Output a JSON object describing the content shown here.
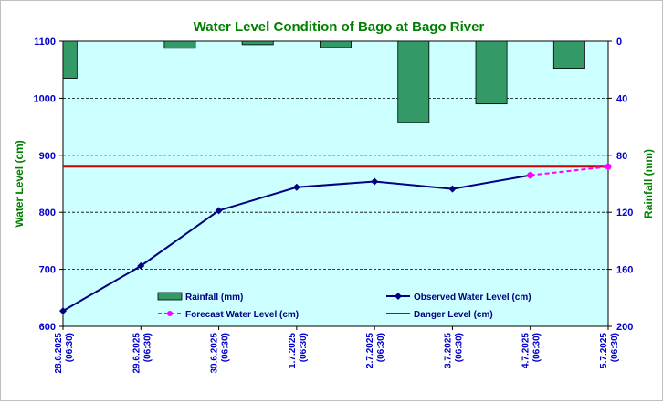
{
  "chart_data": {
    "type": "bar+line",
    "title": "Water Level Condition of Bago at Bago River",
    "y_left_label": "Water Level (cm)",
    "y_right_label": "Rainfall (mm)",
    "y_left_range": [
      600,
      1100
    ],
    "y_left_ticks": [
      "600",
      "700",
      "800",
      "900",
      "1000",
      "1100"
    ],
    "y_right_range": [
      0,
      200
    ],
    "y_right_inverted": true,
    "y_right_ticks": [
      "0",
      "40",
      "80",
      "120",
      "160",
      "200"
    ],
    "x_labels": [
      "28.6.2025 (06:30)",
      "29.6.2025 (06:30)",
      "30.6.2025 (06:30)",
      "1.7.2025 (06:30)",
      "2.7.2025 (06:30)",
      "3.7.2025 (06:30)",
      "4.7.2025 (06:30)",
      "5.7.2025 (06:30)"
    ],
    "rainfall": {
      "name": "Rainfall (mm)",
      "color": "#339966",
      "values": [
        26,
        5,
        2.5,
        4.5,
        57,
        44,
        19
      ]
    },
    "observed": {
      "name": "Observed Water Level (cm)",
      "color": "#000080",
      "values": [
        627,
        706,
        803,
        844,
        854,
        841,
        865
      ]
    },
    "forecast": {
      "name": "Forecast Water Level (cm)",
      "color": "#ff00ff",
      "points": [
        [
          6,
          865
        ],
        [
          7,
          880
        ]
      ]
    },
    "danger": {
      "name": "Danger Level (cm)",
      "color": "#cc0000",
      "value": 880
    },
    "grid": "horizontal dashed",
    "legend_position": "inside-bottom",
    "plot_background": "#ccffff"
  }
}
